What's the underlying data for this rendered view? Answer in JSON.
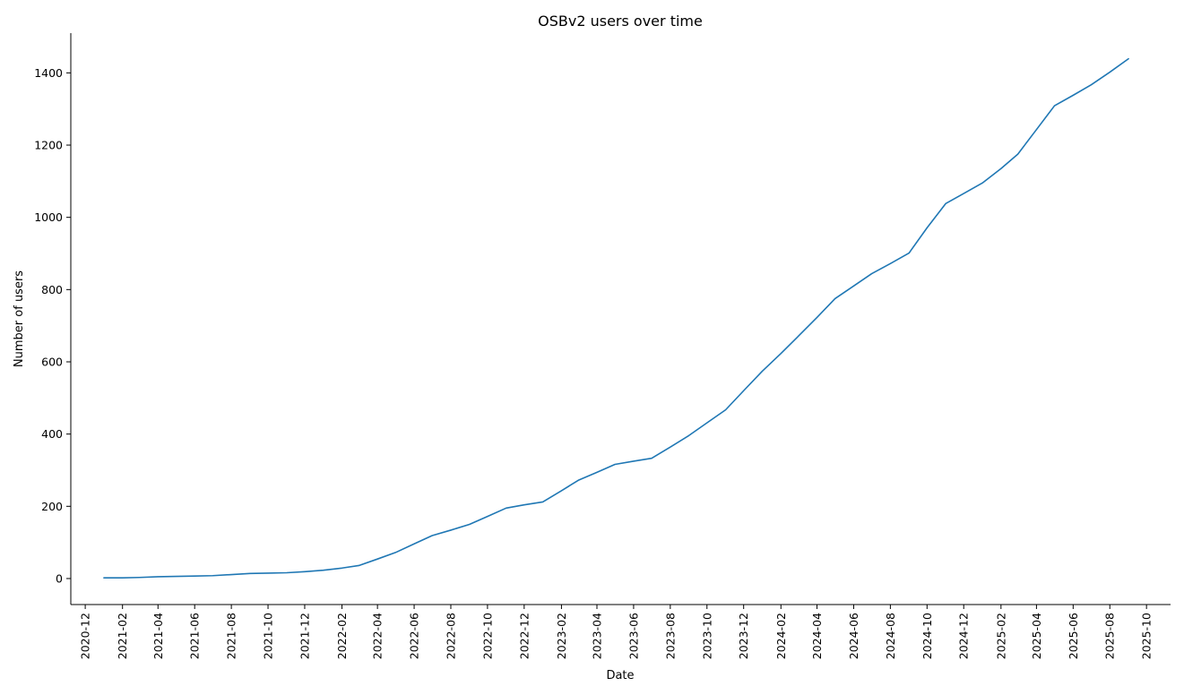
{
  "chart_data": {
    "type": "line",
    "title": "OSBv2 users over time",
    "xlabel": "Date",
    "ylabel": "Number of users",
    "grid": false,
    "legend": "none",
    "xlim": [
      "2020-11-07",
      "2025-11-10"
    ],
    "ylim": [
      -72,
      1510
    ],
    "x_ticks": [
      "2020-12",
      "2021-02",
      "2021-04",
      "2021-06",
      "2021-08",
      "2021-10",
      "2021-12",
      "2022-02",
      "2022-04",
      "2022-06",
      "2022-08",
      "2022-10",
      "2022-12",
      "2023-02",
      "2023-04",
      "2023-06",
      "2023-08",
      "2023-10",
      "2023-12",
      "2024-02",
      "2024-04",
      "2024-06",
      "2024-08",
      "2024-10",
      "2024-12",
      "2025-02",
      "2025-04",
      "2025-06",
      "2025-08",
      "2025-10"
    ],
    "y_ticks": [
      0,
      200,
      400,
      600,
      800,
      1000,
      1200,
      1400
    ],
    "series": [
      {
        "color": "#1f77b4",
        "x": [
          "2021-01-01",
          "2021-02-01",
          "2021-03-01",
          "2021-04-01",
          "2021-05-01",
          "2021-06-01",
          "2021-07-01",
          "2021-08-01",
          "2021-09-01",
          "2021-10-01",
          "2021-11-01",
          "2021-12-01",
          "2022-01-01",
          "2022-02-01",
          "2022-03-01",
          "2022-04-01",
          "2022-05-01",
          "2022-06-01",
          "2022-07-01",
          "2022-08-01",
          "2022-09-01",
          "2022-10-01",
          "2022-11-01",
          "2022-12-01",
          "2023-01-01",
          "2023-02-01",
          "2023-03-01",
          "2023-04-01",
          "2023-05-01",
          "2023-06-01",
          "2023-07-01",
          "2023-08-01",
          "2023-09-01",
          "2023-10-01",
          "2023-11-01",
          "2023-12-01",
          "2024-01-01",
          "2024-02-01",
          "2024-03-01",
          "2024-04-01",
          "2024-05-01",
          "2024-06-01",
          "2024-07-01",
          "2024-08-01",
          "2024-09-01",
          "2024-10-01",
          "2024-11-01",
          "2024-12-01",
          "2025-01-01",
          "2025-02-01",
          "2025-03-01",
          "2025-04-01",
          "2025-05-01",
          "2025-06-01",
          "2025-07-01",
          "2025-08-01",
          "2025-09-01"
        ],
        "y": [
          2,
          2,
          3,
          5,
          6,
          7,
          8,
          11,
          14,
          15,
          16,
          19,
          23,
          29,
          36,
          54,
          72,
          96,
          119,
          134,
          150,
          172,
          195,
          204,
          212,
          243,
          272,
          294,
          316,
          325,
          333,
          364,
          396,
          431,
          467,
          520,
          574,
          623,
          671,
          723,
          775,
          810,
          844,
          872,
          901,
          971,
          1038,
          1066,
          1095,
          1135,
          1175,
          1243,
          1309,
          1338,
          1367,
          1402,
          1439
        ]
      }
    ]
  }
}
